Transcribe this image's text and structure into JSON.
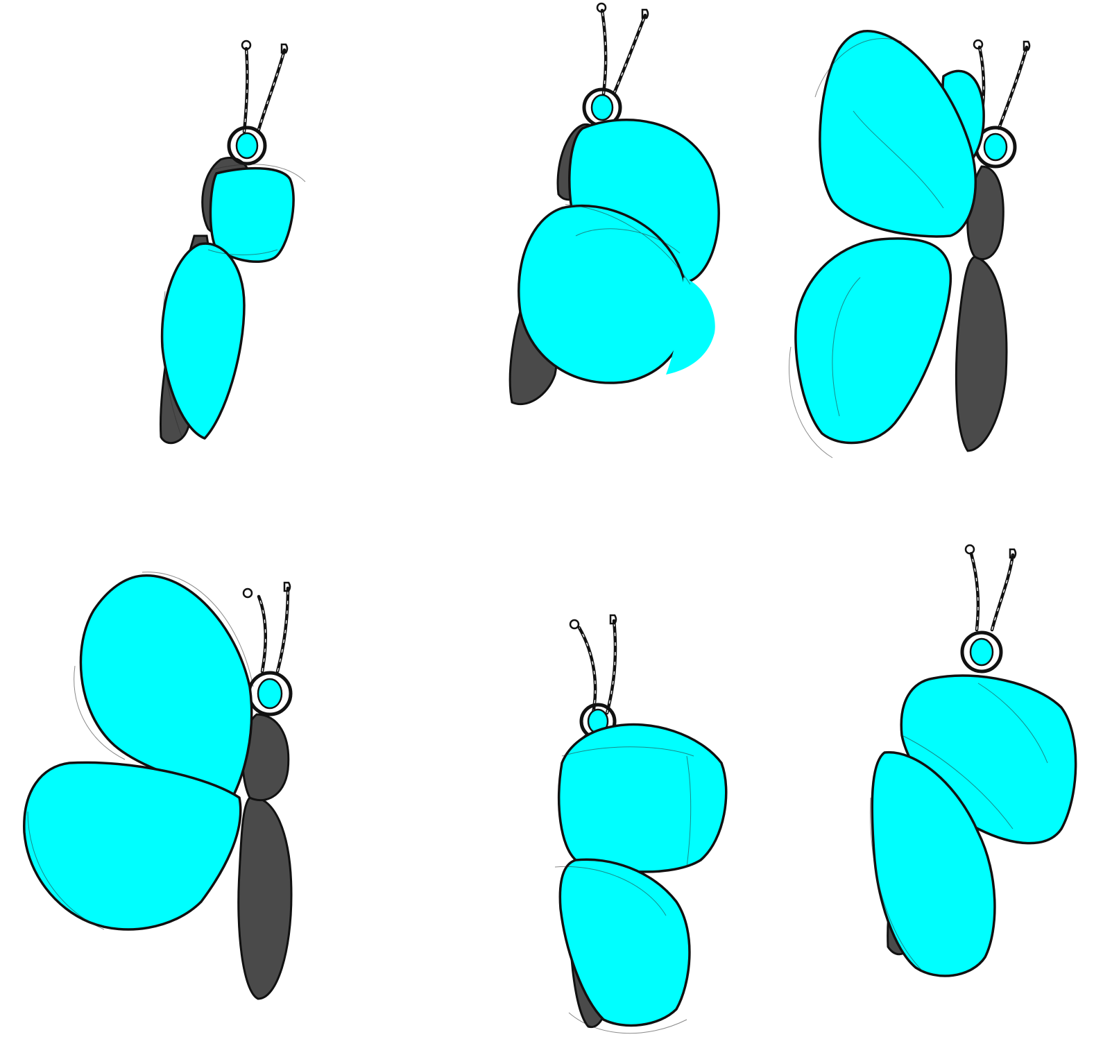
{
  "colors": {
    "wing": "#00ffff",
    "body": "#4a4a4a",
    "outline": "#111111",
    "background": "#ffffff"
  },
  "butterflies": [
    {
      "id": "frame-1",
      "pose": "wings-folded-narrow"
    },
    {
      "id": "frame-2",
      "pose": "wings-folded-round"
    },
    {
      "id": "frame-3",
      "pose": "wings-open-tall"
    },
    {
      "id": "frame-4",
      "pose": "wings-open-wide"
    },
    {
      "id": "frame-5",
      "pose": "wings-folded-blocky"
    },
    {
      "id": "frame-6",
      "pose": "wings-half-open"
    }
  ]
}
